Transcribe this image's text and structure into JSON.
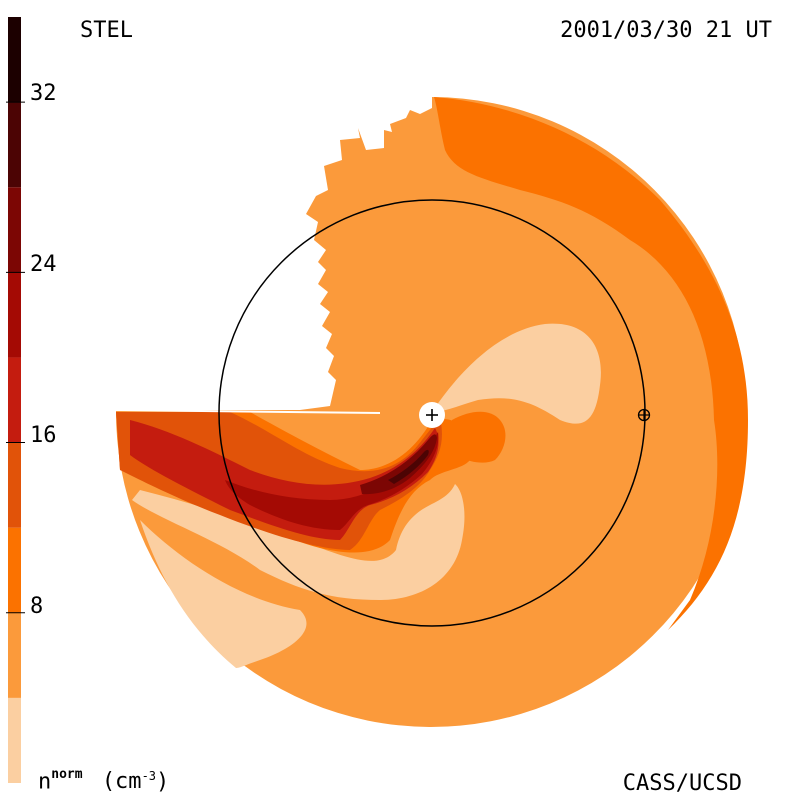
{
  "header": {
    "instrument": "STEL",
    "timestamp": "2001/03/30 21 UT"
  },
  "footer": {
    "credit": "CASS/UCSD"
  },
  "colorbar": {
    "quantity": "n",
    "quantity_superscript": "norm",
    "unit": "(cm",
    "unit_exponent": "-3",
    "unit_close": ")",
    "ticks": [
      "32",
      "24",
      "16",
      "8"
    ],
    "range": [
      0,
      36
    ],
    "levels": [
      {
        "from": 0,
        "to": 4,
        "color": "#fbcfa1"
      },
      {
        "from": 4,
        "to": 8,
        "color": "#fb9a3b"
      },
      {
        "from": 8,
        "to": 12,
        "color": "#fb7200"
      },
      {
        "from": 12,
        "to": 16,
        "color": "#e15309"
      },
      {
        "from": 16,
        "to": 20,
        "color": "#c41c0f"
      },
      {
        "from": 20,
        "to": 24,
        "color": "#a40a04"
      },
      {
        "from": 24,
        "to": 28,
        "color": "#7c0604"
      },
      {
        "from": 28,
        "to": 32,
        "color": "#4c0404"
      },
      {
        "from": 32,
        "to": 36,
        "color": "#1c0000"
      }
    ]
  },
  "symbols": {
    "sun": "sun-plus-icon",
    "earth": "earth-circled-plus-icon"
  }
}
